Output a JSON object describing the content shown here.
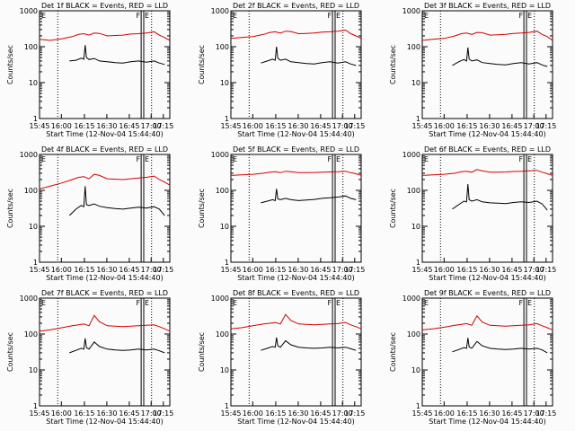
{
  "colors": {
    "events": "#000000",
    "lld": "#d40000",
    "background": "#fbfbfb"
  },
  "chart_data": [
    {
      "type": "line",
      "title": "Det 1f BLACK = Events, RED = LLD",
      "ylabel": "Counts/sec",
      "xlabel": "Start Time (12-Nov-04 15:44:40)",
      "yscale": "log",
      "ylim": [
        1,
        1000
      ],
      "xlim": [
        0,
        100
      ],
      "xtick_labels": [
        "15:45",
        "16:00",
        "16:15",
        "16:30",
        "16:45",
        "17:00",
        "17:15"
      ],
      "ytick_labels": [
        "1",
        "10",
        "100",
        "1000"
      ],
      "marker_labels": [
        "F",
        "E"
      ],
      "series": [
        {
          "color": "lld",
          "x": [
            0,
            8,
            17,
            25,
            30,
            34,
            38,
            42,
            46,
            52,
            58,
            64,
            70,
            76,
            82,
            88,
            92,
            96,
            100
          ],
          "y": [
            160,
            150,
            165,
            190,
            220,
            230,
            210,
            240,
            235,
            200,
            205,
            210,
            225,
            230,
            240,
            260,
            210,
            180,
            150
          ]
        },
        {
          "color": "events",
          "x": [
            23,
            28,
            32,
            34,
            35,
            36,
            38,
            42,
            46,
            52,
            58,
            64,
            70,
            76,
            82,
            88,
            92,
            96
          ],
          "y": [
            40,
            42,
            48,
            45,
            110,
            50,
            44,
            47,
            40,
            38,
            36,
            35,
            38,
            40,
            37,
            40,
            35,
            32
          ]
        }
      ]
    },
    {
      "type": "line",
      "title": "Det 2f BLACK = Events, RED = LLD",
      "ylabel": "Counts/sec",
      "xlabel": "Start Time (12-Nov-04 15:44:40)",
      "yscale": "log",
      "ylim": [
        1,
        1000
      ],
      "xlim": [
        0,
        100
      ],
      "xtick_labels": [
        "15:45",
        "16:00",
        "16:15",
        "16:30",
        "16:45",
        "17:00",
        "17:15"
      ],
      "ytick_labels": [
        "1",
        "10",
        "100",
        "1000"
      ],
      "marker_labels": [
        "F",
        "E"
      ],
      "series": [
        {
          "color": "lld",
          "x": [
            0,
            8,
            17,
            25,
            30,
            34,
            38,
            42,
            46,
            52,
            58,
            64,
            70,
            76,
            82,
            88,
            92,
            96,
            100
          ],
          "y": [
            170,
            180,
            190,
            220,
            250,
            260,
            240,
            270,
            265,
            230,
            235,
            240,
            255,
            260,
            270,
            290,
            230,
            200,
            170
          ]
        },
        {
          "color": "events",
          "x": [
            23,
            28,
            32,
            34,
            35,
            36,
            38,
            42,
            46,
            52,
            58,
            64,
            70,
            76,
            82,
            88,
            92,
            96
          ],
          "y": [
            35,
            40,
            45,
            42,
            100,
            48,
            42,
            45,
            38,
            36,
            34,
            33,
            36,
            38,
            35,
            38,
            33,
            30
          ]
        }
      ]
    },
    {
      "type": "line",
      "title": "Det 3f BLACK = Events, RED = LLD",
      "ylabel": "Counts/sec",
      "xlabel": "Start Time (12-Nov-04 15:44:40)",
      "yscale": "log",
      "ylim": [
        1,
        1000
      ],
      "xlim": [
        0,
        100
      ],
      "xtick_labels": [
        "15:45",
        "16:00",
        "16:15",
        "16:30",
        "16:45",
        "17:00",
        "17:15"
      ],
      "ytick_labels": [
        "1",
        "10",
        "100",
        "1000"
      ],
      "marker_labels": [
        "F",
        "E"
      ],
      "series": [
        {
          "color": "lld",
          "x": [
            0,
            8,
            17,
            25,
            30,
            34,
            38,
            42,
            46,
            52,
            58,
            64,
            70,
            76,
            82,
            88,
            92,
            96,
            100
          ],
          "y": [
            150,
            160,
            170,
            200,
            230,
            240,
            220,
            250,
            245,
            210,
            215,
            220,
            235,
            240,
            250,
            270,
            220,
            190,
            150
          ]
        },
        {
          "color": "events",
          "x": [
            23,
            28,
            32,
            34,
            35,
            36,
            38,
            42,
            46,
            52,
            58,
            64,
            70,
            76,
            82,
            88,
            92,
            96
          ],
          "y": [
            30,
            38,
            44,
            40,
            95,
            45,
            40,
            43,
            36,
            34,
            32,
            31,
            34,
            36,
            33,
            36,
            31,
            28
          ]
        }
      ]
    },
    {
      "type": "line",
      "title": "Det 4f BLACK = Events, RED = LLD",
      "ylabel": "Counts/sec",
      "xlabel": "Start Time (12-Nov-04 15:44:40)",
      "yscale": "log",
      "ylim": [
        1,
        1000
      ],
      "xlim": [
        0,
        100
      ],
      "xtick_labels": [
        "15:45",
        "16:00",
        "16:15",
        "16:30",
        "16:45",
        "17:00",
        "17:15"
      ],
      "ytick_labels": [
        "1",
        "10",
        "100",
        "1000"
      ],
      "marker_labels": [
        "F",
        "E"
      ],
      "series": [
        {
          "color": "lld",
          "x": [
            0,
            8,
            17,
            25,
            30,
            34,
            38,
            42,
            46,
            52,
            58,
            64,
            70,
            76,
            82,
            88,
            92,
            96,
            100
          ],
          "y": [
            110,
            130,
            160,
            200,
            230,
            240,
            210,
            280,
            260,
            210,
            205,
            200,
            210,
            220,
            230,
            250,
            200,
            170,
            140
          ]
        },
        {
          "color": "events",
          "x": [
            23,
            28,
            32,
            34,
            35,
            36,
            38,
            42,
            46,
            52,
            58,
            64,
            70,
            76,
            82,
            88,
            92,
            96
          ],
          "y": [
            20,
            30,
            38,
            35,
            130,
            40,
            38,
            42,
            36,
            33,
            31,
            30,
            32,
            34,
            32,
            35,
            30,
            20
          ]
        }
      ]
    },
    {
      "type": "line",
      "title": "Det 5f BLACK = Events, RED = LLD",
      "ylabel": "Counts/sec",
      "xlabel": "Start Time (12-Nov-04 15:44:40)",
      "yscale": "log",
      "ylim": [
        1,
        1000
      ],
      "xlim": [
        0,
        100
      ],
      "xtick_labels": [
        "15:45",
        "16:00",
        "16:15",
        "16:30",
        "16:45",
        "17:00",
        "17:15"
      ],
      "ytick_labels": [
        "1",
        "10",
        "100",
        "1000"
      ],
      "marker_labels": [
        "F",
        "E"
      ],
      "series": [
        {
          "color": "lld",
          "x": [
            0,
            8,
            17,
            25,
            30,
            34,
            38,
            42,
            46,
            52,
            58,
            64,
            70,
            76,
            82,
            88,
            92,
            96,
            100
          ],
          "y": [
            260,
            270,
            280,
            300,
            320,
            330,
            310,
            340,
            330,
            310,
            310,
            315,
            320,
            325,
            330,
            340,
            310,
            290,
            260
          ]
        },
        {
          "color": "events",
          "x": [
            23,
            28,
            32,
            34,
            35,
            36,
            38,
            42,
            46,
            52,
            58,
            64,
            70,
            76,
            82,
            88,
            92,
            96
          ],
          "y": [
            45,
            50,
            55,
            52,
            110,
            58,
            55,
            60,
            55,
            52,
            54,
            56,
            60,
            62,
            65,
            70,
            60,
            55
          ]
        }
      ]
    },
    {
      "type": "line",
      "title": "Det 6f BLACK = Events, RED = LLD",
      "ylabel": "Counts/sec",
      "xlabel": "Start Time (12-Nov-04 15:44:40)",
      "yscale": "log",
      "ylim": [
        1,
        1000
      ],
      "xlim": [
        0,
        100
      ],
      "xtick_labels": [
        "15:45",
        "16:00",
        "16:15",
        "16:30",
        "16:45",
        "17:00",
        "17:15"
      ],
      "ytick_labels": [
        "1",
        "10",
        "100",
        "1000"
      ],
      "marker_labels": [
        "F",
        "E"
      ],
      "series": [
        {
          "color": "lld",
          "x": [
            0,
            8,
            17,
            25,
            30,
            34,
            38,
            42,
            46,
            52,
            58,
            64,
            70,
            76,
            82,
            88,
            92,
            96,
            100
          ],
          "y": [
            260,
            270,
            280,
            300,
            330,
            340,
            320,
            380,
            350,
            320,
            320,
            325,
            335,
            340,
            350,
            360,
            320,
            290,
            260
          ]
        },
        {
          "color": "events",
          "x": [
            23,
            28,
            32,
            34,
            35,
            36,
            38,
            42,
            46,
            52,
            58,
            64,
            70,
            76,
            82,
            88,
            92,
            96
          ],
          "y": [
            30,
            40,
            50,
            48,
            150,
            55,
            50,
            55,
            48,
            45,
            44,
            43,
            46,
            48,
            46,
            50,
            42,
            28
          ]
        }
      ]
    },
    {
      "type": "line",
      "title": "Det 7f BLACK = Events, RED = LLD",
      "ylabel": "Counts/sec",
      "xlabel": "Start Time (12-Nov-04 15:44:40)",
      "yscale": "log",
      "ylim": [
        1,
        1000
      ],
      "xlim": [
        0,
        100
      ],
      "xtick_labels": [
        "15:45",
        "16:00",
        "16:15",
        "16:30",
        "16:45",
        "17:00",
        "17:15"
      ],
      "ytick_labels": [
        "1",
        "10",
        "100",
        "1000"
      ],
      "marker_labels": [
        "F",
        "E"
      ],
      "series": [
        {
          "color": "lld",
          "x": [
            0,
            8,
            17,
            25,
            30,
            34,
            38,
            42,
            46,
            52,
            58,
            64,
            70,
            76,
            82,
            88,
            92,
            96,
            100
          ],
          "y": [
            120,
            130,
            150,
            170,
            180,
            190,
            170,
            330,
            220,
            170,
            165,
            160,
            165,
            170,
            175,
            180,
            160,
            140,
            120
          ]
        },
        {
          "color": "events",
          "x": [
            23,
            28,
            32,
            34,
            35,
            36,
            38,
            42,
            46,
            52,
            58,
            64,
            70,
            76,
            82,
            88,
            92,
            96
          ],
          "y": [
            30,
            35,
            40,
            38,
            75,
            42,
            38,
            60,
            45,
            38,
            36,
            35,
            36,
            38,
            36,
            38,
            34,
            30
          ]
        }
      ]
    },
    {
      "type": "line",
      "title": "Det 8f BLACK = Events, RED = LLD",
      "ylabel": "Counts/sec",
      "xlabel": "Start Time (12-Nov-04 15:44:40)",
      "yscale": "log",
      "ylim": [
        1,
        1000
      ],
      "xlim": [
        0,
        100
      ],
      "xtick_labels": [
        "15:45",
        "16:00",
        "16:15",
        "16:30",
        "16:45",
        "17:00",
        "17:15"
      ],
      "ytick_labels": [
        "1",
        "10",
        "100",
        "1000"
      ],
      "marker_labels": [
        "F",
        "E"
      ],
      "series": [
        {
          "color": "lld",
          "x": [
            0,
            8,
            17,
            25,
            30,
            34,
            38,
            42,
            46,
            52,
            58,
            64,
            70,
            76,
            82,
            88,
            92,
            96,
            100
          ],
          "y": [
            140,
            150,
            170,
            190,
            200,
            210,
            190,
            350,
            240,
            190,
            185,
            180,
            185,
            190,
            195,
            210,
            180,
            160,
            140
          ]
        },
        {
          "color": "events",
          "x": [
            23,
            28,
            32,
            34,
            35,
            36,
            38,
            42,
            46,
            52,
            58,
            64,
            70,
            76,
            82,
            88,
            92,
            96
          ],
          "y": [
            35,
            40,
            45,
            43,
            80,
            47,
            43,
            65,
            50,
            43,
            41,
            40,
            41,
            43,
            41,
            43,
            39,
            35
          ]
        }
      ]
    },
    {
      "type": "line",
      "title": "Det 9f BLACK = Events, RED = LLD",
      "ylabel": "Counts/sec",
      "xlabel": "Start Time (12-Nov-04 15:44:40)",
      "yscale": "log",
      "ylim": [
        1,
        1000
      ],
      "xlim": [
        0,
        100
      ],
      "xtick_labels": [
        "15:45",
        "16:00",
        "16:15",
        "16:30",
        "16:45",
        "17:00",
        "17:15"
      ],
      "ytick_labels": [
        "1",
        "10",
        "100",
        "1000"
      ],
      "marker_labels": [
        "F",
        "E"
      ],
      "series": [
        {
          "color": "lld",
          "x": [
            0,
            8,
            17,
            25,
            30,
            34,
            38,
            42,
            46,
            52,
            58,
            64,
            70,
            76,
            82,
            88,
            92,
            96,
            100
          ],
          "y": [
            130,
            140,
            155,
            175,
            185,
            195,
            175,
            320,
            215,
            175,
            170,
            165,
            170,
            175,
            180,
            195,
            170,
            150,
            130
          ]
        },
        {
          "color": "events",
          "x": [
            23,
            28,
            32,
            34,
            35,
            36,
            38,
            42,
            46,
            52,
            58,
            64,
            70,
            76,
            82,
            88,
            92,
            96
          ],
          "y": [
            32,
            37,
            42,
            40,
            78,
            44,
            40,
            62,
            47,
            40,
            38,
            37,
            38,
            40,
            38,
            40,
            36,
            30
          ]
        }
      ]
    }
  ]
}
